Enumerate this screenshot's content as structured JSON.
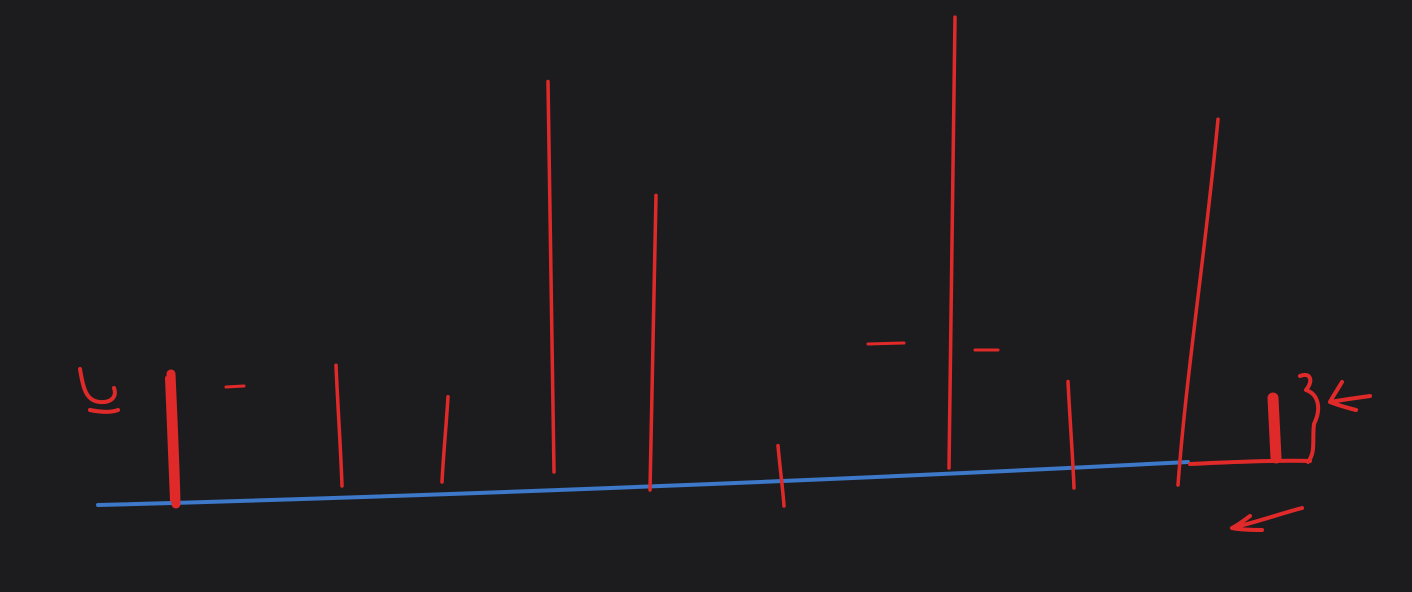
{
  "sketch": {
    "background_color": "#1c1c1f",
    "baseline_color": "#3d78c9",
    "bar_color": "#e02a2a",
    "left_label": "5",
    "right_label": "3",
    "bar_heights": [
      0.34,
      0.83,
      0.24,
      1.1,
      0.17,
      0.98,
      1.27,
      0.3,
      1.03
    ],
    "marks": [
      "left-edge-bar",
      "right-edge-bar",
      "dash-marks",
      "pointer-arrows"
    ]
  }
}
